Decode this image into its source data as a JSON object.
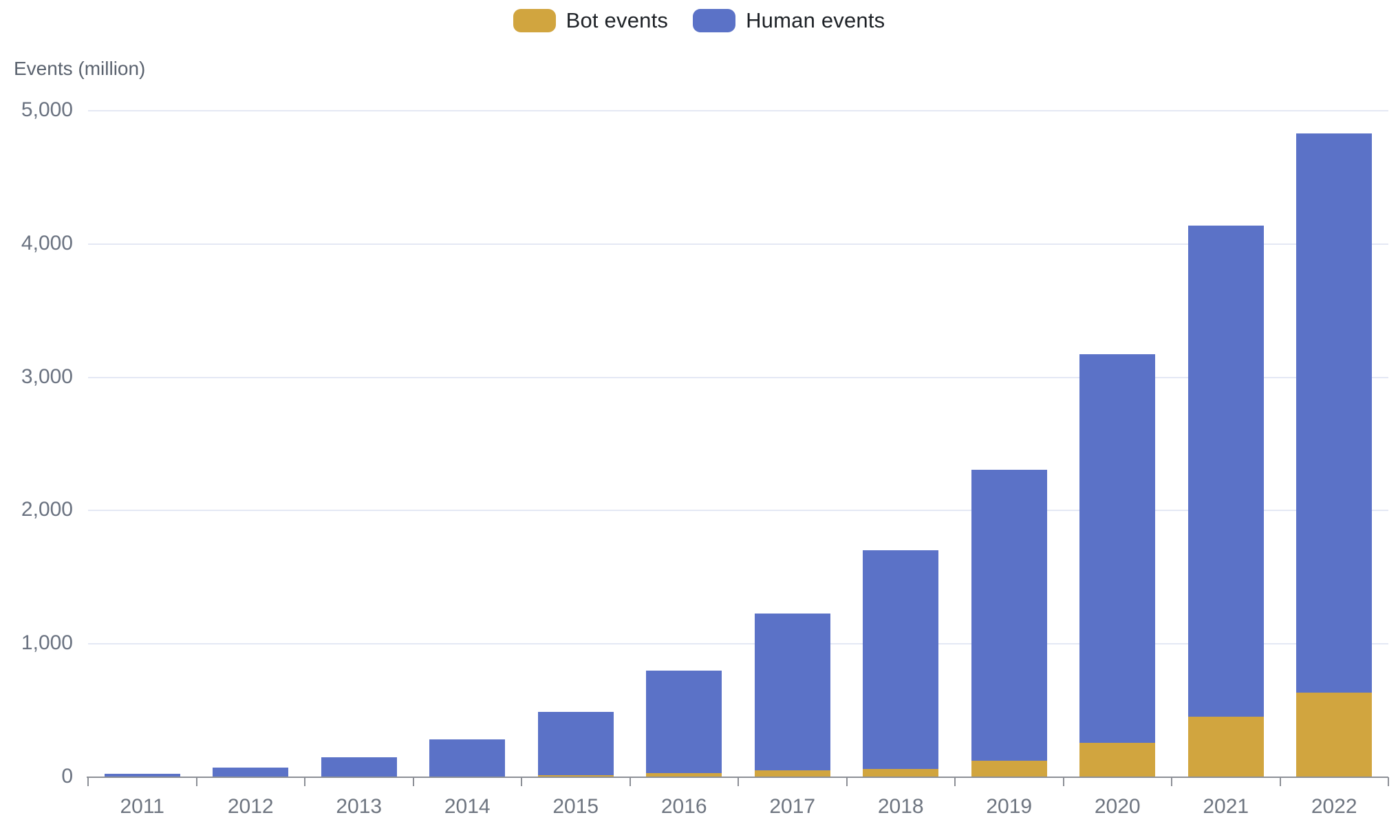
{
  "chart_data": {
    "type": "bar",
    "stacked": true,
    "ylabel": "Events (million)",
    "legend_position": "top",
    "grid": true,
    "categories": [
      "2011",
      "2012",
      "2013",
      "2014",
      "2015",
      "2016",
      "2017",
      "2018",
      "2019",
      "2020",
      "2021",
      "2022"
    ],
    "series": [
      {
        "name": "Bot events",
        "color": "#d1a53f",
        "values": [
          1,
          2,
          4,
          7,
          14,
          30,
          50,
          62,
          125,
          258,
          455,
          633
        ]
      },
      {
        "name": "Human events",
        "color": "#5b72c7",
        "values": [
          26,
          71,
          144,
          276,
          476,
          770,
          1180,
          1640,
          2180,
          2917,
          3685,
          4197
        ]
      }
    ],
    "totals": [
      27,
      73,
      148,
      283,
      490,
      800,
      1230,
      1702,
      2305,
      3175,
      4140,
      4830
    ],
    "ylim": [
      0,
      5000
    ],
    "y_ticks": [
      {
        "value": 0,
        "label": "0"
      },
      {
        "value": 1000,
        "label": "1,000"
      },
      {
        "value": 2000,
        "label": "2,000"
      },
      {
        "value": 3000,
        "label": "3,000"
      },
      {
        "value": 4000,
        "label": "4,000"
      },
      {
        "value": 5000,
        "label": "5,000"
      }
    ]
  }
}
